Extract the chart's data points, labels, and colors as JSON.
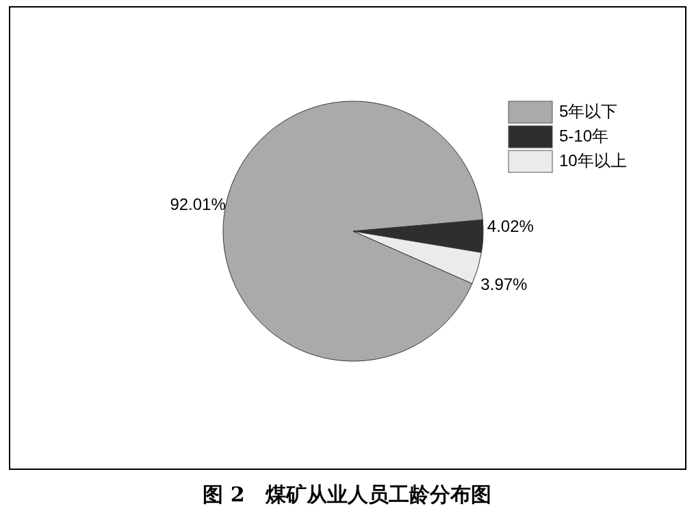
{
  "chart_data": {
    "type": "pie",
    "title": "图 2　煤矿从业人员工龄分布图",
    "categories": [
      "5年以下",
      "5-10年",
      "10年以上"
    ],
    "values": [
      92.01,
      4.02,
      3.97
    ],
    "colors": [
      "#aaaaaa",
      "#2e2e2e",
      "#ebebeb"
    ],
    "value_labels": [
      "92.01%",
      "4.02%",
      "3.97%"
    ],
    "legend": "top right"
  }
}
